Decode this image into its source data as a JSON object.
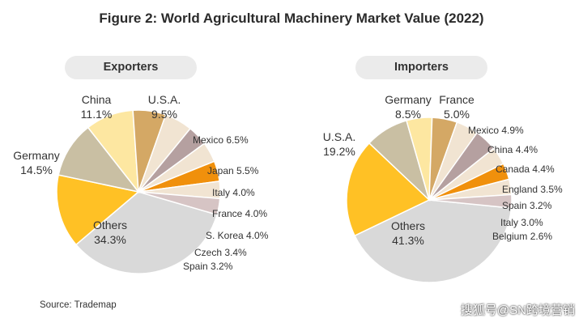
{
  "title": "Figure 2: World Agricultural Machinery Market Value (2022)",
  "source": "Source: Trademap",
  "watermark": "搜狐号@SN跨境营销",
  "colors": {
    "background": "#ffffff",
    "pill": "#ebebeb",
    "others": "#d9d9d9",
    "yellow": "#ffc125",
    "khaki": "#c9bfa3",
    "light_yellow": "#fde7a1",
    "tan": "#d4a865",
    "beige": "#f1e4d2",
    "mauve": "#b5a0a0",
    "orange": "#f0900c",
    "light_mauve": "#d6c4c4"
  },
  "chart_data": [
    {
      "type": "pie",
      "title": "Exporters",
      "unit": "%",
      "slices": [
        {
          "label": "Others",
          "value": 34.3,
          "color": "#d9d9d9"
        },
        {
          "label": "Germany",
          "value": 14.5,
          "color": "#ffc125"
        },
        {
          "label": "China",
          "value": 11.1,
          "color": "#c9bfa3"
        },
        {
          "label": "U.S.A.",
          "value": 9.5,
          "color": "#fde7a1"
        },
        {
          "label": "Mexico",
          "value": 6.5,
          "color": "#d4a865"
        },
        {
          "label": "Japan",
          "value": 5.5,
          "color": "#f1e4d2"
        },
        {
          "label": "Italy",
          "value": 4.0,
          "color": "#b5a0a0"
        },
        {
          "label": "France",
          "value": 4.0,
          "color": "#f1e4d2"
        },
        {
          "label": "S. Korea",
          "value": 4.0,
          "color": "#f0900c"
        },
        {
          "label": "Czech",
          "value": 3.4,
          "color": "#f1e4d2"
        },
        {
          "label": "Spain",
          "value": 3.2,
          "color": "#d6c4c4"
        }
      ]
    },
    {
      "type": "pie",
      "title": "Importers",
      "unit": "%",
      "slices": [
        {
          "label": "Others",
          "value": 41.3,
          "color": "#d9d9d9"
        },
        {
          "label": "U.S.A.",
          "value": 19.2,
          "color": "#ffc125"
        },
        {
          "label": "Germany",
          "value": 8.5,
          "color": "#c9bfa3"
        },
        {
          "label": "France",
          "value": 5.0,
          "color": "#fde7a1"
        },
        {
          "label": "Mexico",
          "value": 4.9,
          "color": "#d4a865"
        },
        {
          "label": "China",
          "value": 4.4,
          "color": "#f1e4d2"
        },
        {
          "label": "Canada",
          "value": 4.4,
          "color": "#b5a0a0"
        },
        {
          "label": "England",
          "value": 3.5,
          "color": "#f1e4d2"
        },
        {
          "label": "Spain",
          "value": 3.2,
          "color": "#f0900c"
        },
        {
          "label": "Italy",
          "value": 3.0,
          "color": "#f1e4d2"
        },
        {
          "label": "Belgium",
          "value": 2.6,
          "color": "#d6c4c4"
        }
      ]
    }
  ]
}
